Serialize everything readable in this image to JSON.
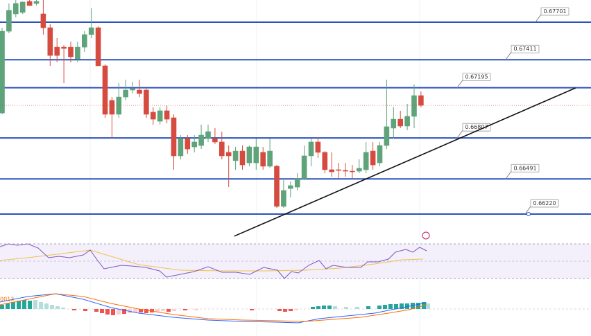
{
  "chart_data": {
    "type": "candlestick",
    "open": [
      0.67,
      0.67631,
      0.67765,
      0.67776,
      0.67861,
      0.67845,
      0.67765,
      0.67658,
      0.67508,
      0.67508,
      0.67508,
      0.67417,
      0.67508,
      0.67605,
      0.67658,
      0.67364,
      0.67097,
      0.6699,
      0.67123,
      0.67177,
      0.67177,
      0.67177,
      0.67006,
      0.66936,
      0.67017,
      0.66963,
      0.66669,
      0.66803,
      0.66738,
      0.66749,
      0.66803,
      0.66803,
      0.66776,
      0.66696,
      0.66632,
      0.66706,
      0.66615,
      0.66615,
      0.66696,
      0.66589,
      0.66589,
      0.66279,
      0.66417,
      0.66428,
      0.66492,
      0.66669,
      0.66776,
      0.66696,
      0.66562,
      0.66562,
      0.66557,
      0.66551,
      0.66551,
      0.66562,
      0.66706,
      0.66615,
      0.66749,
      0.66883,
      0.66952,
      0.66899,
      0.66974,
      0.67134
    ],
    "high": [
      0.67658,
      0.67845,
      0.67872,
      0.67861,
      0.67872,
      0.67872,
      0.67872,
      0.67685,
      0.67578,
      0.67524,
      0.67551,
      0.67551,
      0.67631,
      0.67808,
      0.67669,
      0.67375,
      0.67123,
      0.6723,
      0.67257,
      0.67241,
      0.67257,
      0.67188,
      0.67044,
      0.67044,
      0.67059,
      0.6699,
      0.66829,
      0.66829,
      0.66829,
      0.6691,
      0.6691,
      0.66883,
      0.66856,
      0.66749,
      0.66738,
      0.66749,
      0.66749,
      0.66803,
      0.66738,
      0.66803,
      0.66599,
      0.66482,
      0.66471,
      0.66535,
      0.66749,
      0.66803,
      0.66813,
      0.66706,
      0.66696,
      0.66615,
      0.66615,
      0.66599,
      0.66642,
      0.66776,
      0.66776,
      0.66776,
      0.67257,
      0.67044,
      0.67017,
      0.6707,
      0.6722,
      0.67166
    ],
    "low": [
      0.6699,
      0.67615,
      0.67738,
      0.67765,
      0.67829,
      0.67829,
      0.67605,
      0.67364,
      0.67391,
      0.6723,
      0.67391,
      0.67391,
      0.67471,
      0.67578,
      0.67364,
      0.66963,
      0.66803,
      0.66963,
      0.67097,
      0.6715,
      0.67123,
      0.66963,
      0.6691,
      0.6691,
      0.6692,
      0.66562,
      0.66642,
      0.66685,
      0.66696,
      0.66722,
      0.66776,
      0.6676,
      0.66642,
      0.66428,
      0.66562,
      0.66562,
      0.66589,
      0.66562,
      0.66562,
      0.66578,
      0.66268,
      0.66268,
      0.66348,
      0.66402,
      0.66482,
      0.66589,
      0.66653,
      0.66535,
      0.66508,
      0.66492,
      0.66508,
      0.66492,
      0.66535,
      0.66535,
      0.66562,
      0.66589,
      0.66722,
      0.66803,
      0.66883,
      0.66867,
      0.66883,
      0.67044
    ],
    "close": [
      0.67631,
      0.67792,
      0.67845,
      0.67856,
      0.67829,
      0.67861,
      0.67658,
      0.67444,
      0.67444,
      0.67498,
      0.67434,
      0.67508,
      0.67605,
      0.67658,
      0.67364,
      0.6699,
      0.6699,
      0.67123,
      0.67177,
      0.67188,
      0.6715,
      0.6699,
      0.66952,
      0.67017,
      0.66952,
      0.66669,
      0.66803,
      0.66722,
      0.66776,
      0.66829,
      0.66856,
      0.66776,
      0.66669,
      0.66669,
      0.66706,
      0.66599,
      0.66738,
      0.66738,
      0.66589,
      0.66706,
      0.66279,
      0.66402,
      0.66439,
      0.66492,
      0.66669,
      0.66776,
      0.66696,
      0.66562,
      0.66546,
      0.66557,
      0.66551,
      0.66546,
      0.66573,
      0.66696,
      0.66599,
      0.66749,
      0.66894,
      0.66952,
      0.66899,
      0.66974,
      0.67134,
      0.67059
    ],
    "up_color": "#5fa37a",
    "down_color": "#d64b3f",
    "ylim": [
      0.66054,
      0.67872
    ],
    "levels": [
      {
        "value": 0.67701,
        "label": "0.67701"
      },
      {
        "value": 0.67411,
        "label": "0.67411"
      },
      {
        "value": 0.67195,
        "label": "0.67195"
      },
      {
        "value": 0.66807,
        "label": "0.66807"
      },
      {
        "value": 0.66491,
        "label": "0.66491"
      },
      {
        "value": 0.6622,
        "label": "0.66220"
      }
    ],
    "level_color": "#2a52be",
    "trendline": {
      "x": [
        33.8,
        83.5
      ],
      "y": [
        0.66049,
        0.67193
      ]
    },
    "macd_label": "0013"
  }
}
